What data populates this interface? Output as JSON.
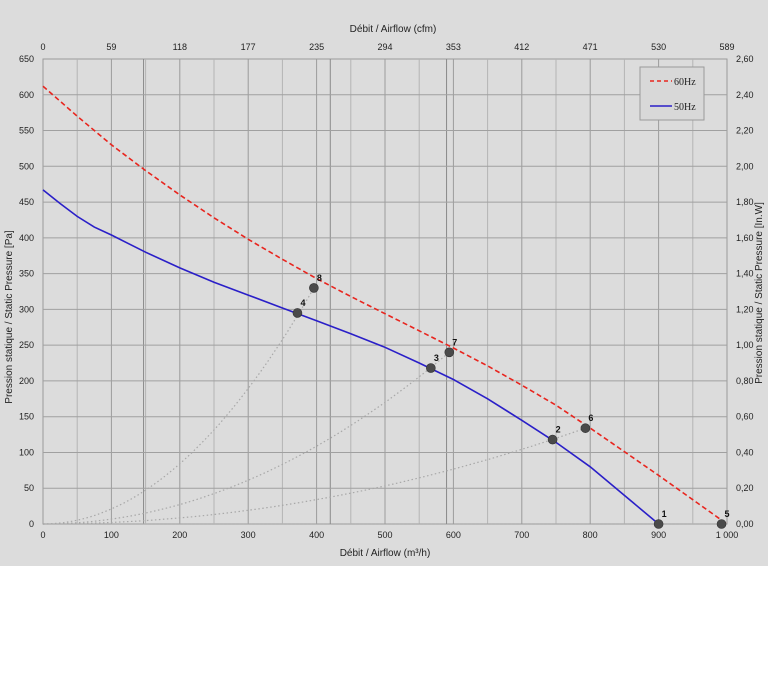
{
  "chart_data": {
    "type": "line",
    "title": "",
    "xlabel": "Débit / Airflow (m³/h)",
    "xlabel_top": "Débit / Airflow (cfm)",
    "ylabel": "Pression statique / Static Pressure [Pa]",
    "ylabel_right": "Pression statique / Static Pressure [In.W]",
    "xlim": [
      0,
      1000
    ],
    "ylim": [
      0,
      650
    ],
    "x_ticks": [
      {
        "v": 0,
        "label": "0"
      },
      {
        "v": 100,
        "label": "100"
      },
      {
        "v": 200,
        "label": "200"
      },
      {
        "v": 300,
        "label": "300"
      },
      {
        "v": 400,
        "label": "400"
      },
      {
        "v": 500,
        "label": "500"
      },
      {
        "v": 600,
        "label": "600"
      },
      {
        "v": 700,
        "label": "700"
      },
      {
        "v": 800,
        "label": "800"
      },
      {
        "v": 900,
        "label": "900"
      },
      {
        "v": 1000,
        "label": "1 000"
      }
    ],
    "x_top_ticks": [
      {
        "v": 0,
        "label": "0"
      },
      {
        "v": 100,
        "label": "59"
      },
      {
        "v": 200,
        "label": "118"
      },
      {
        "v": 300,
        "label": "177"
      },
      {
        "v": 400,
        "label": "235"
      },
      {
        "v": 500,
        "label": "294"
      },
      {
        "v": 600,
        "label": "353"
      },
      {
        "v": 700,
        "label": "412"
      },
      {
        "v": 800,
        "label": "471"
      },
      {
        "v": 900,
        "label": "530"
      },
      {
        "v": 1000,
        "label": "589"
      }
    ],
    "y_ticks": [
      {
        "v": 0,
        "label": "0"
      },
      {
        "v": 50,
        "label": "50"
      },
      {
        "v": 100,
        "label": "100"
      },
      {
        "v": 150,
        "label": "150"
      },
      {
        "v": 200,
        "label": "200"
      },
      {
        "v": 250,
        "label": "250"
      },
      {
        "v": 300,
        "label": "300"
      },
      {
        "v": 350,
        "label": "350"
      },
      {
        "v": 400,
        "label": "400"
      },
      {
        "v": 450,
        "label": "450"
      },
      {
        "v": 500,
        "label": "500"
      },
      {
        "v": 550,
        "label": "550"
      },
      {
        "v": 600,
        "label": "600"
      },
      {
        "v": 650,
        "label": "650"
      }
    ],
    "y_right_ticks": [
      {
        "v": 0,
        "label": "0,00"
      },
      {
        "v": 50,
        "label": "0,20"
      },
      {
        "v": 100,
        "label": "0,40"
      },
      {
        "v": 150,
        "label": "0,60"
      },
      {
        "v": 200,
        "label": "0,80"
      },
      {
        "v": 250,
        "label": "1,00"
      },
      {
        "v": 300,
        "label": "1,20"
      },
      {
        "v": 350,
        "label": "1,40"
      },
      {
        "v": 400,
        "label": "1,60"
      },
      {
        "v": 450,
        "label": "1,80"
      },
      {
        "v": 500,
        "label": "2,00"
      },
      {
        "v": 550,
        "label": "2,20"
      },
      {
        "v": 600,
        "label": "2,40"
      },
      {
        "v": 650,
        "label": "2,60"
      }
    ],
    "grid": true,
    "legend_position": "top-right",
    "series": [
      {
        "name": "60Hz",
        "color": "#e8251e",
        "dashed": true,
        "x": [
          0,
          50,
          100,
          150,
          200,
          250,
          300,
          350,
          400,
          450,
          500,
          550,
          600,
          650,
          700,
          750,
          800,
          850,
          900,
          950,
          1000
        ],
        "y": [
          612,
          570,
          530,
          494,
          460,
          428,
          398,
          370,
          343,
          318,
          294,
          270,
          246,
          221,
          194,
          166,
          134,
          101,
          68,
          34,
          0
        ]
      },
      {
        "name": "50Hz",
        "color": "#2a1fc8",
        "dashed": false,
        "x": [
          0,
          25,
          50,
          75,
          100,
          150,
          200,
          250,
          300,
          350,
          400,
          450,
          500,
          550,
          600,
          650,
          700,
          750,
          800,
          850,
          900
        ],
        "y": [
          467,
          448,
          430,
          415,
          404,
          380,
          358,
          338,
          320,
          302,
          284,
          266,
          247,
          225,
          202,
          175,
          145,
          114,
          80,
          40,
          0
        ]
      }
    ],
    "points": [
      {
        "label": "1",
        "x": 900,
        "y": 0
      },
      {
        "label": "2",
        "x": 745,
        "y": 118
      },
      {
        "label": "3",
        "x": 567,
        "y": 218
      },
      {
        "label": "4",
        "x": 372,
        "y": 295
      },
      {
        "label": "5",
        "x": 992,
        "y": 0
      },
      {
        "label": "6",
        "x": 793,
        "y": 134
      },
      {
        "label": "7",
        "x": 594,
        "y": 240
      },
      {
        "label": "8",
        "x": 396,
        "y": 330
      }
    ],
    "system_curves": [
      {
        "to": {
          "x": 396,
          "y": 330
        }
      },
      {
        "to": {
          "x": 594,
          "y": 240
        }
      },
      {
        "to": {
          "x": 793,
          "y": 134
        }
      },
      {
        "to": {
          "x": 992,
          "y": 0
        }
      }
    ]
  }
}
